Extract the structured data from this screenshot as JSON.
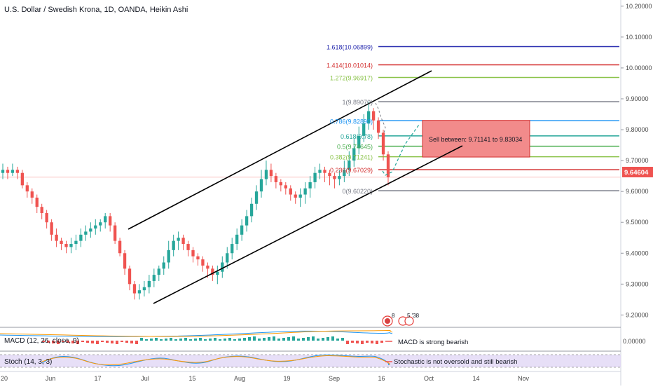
{
  "title": "U.S. Dollar / Swedish Krona, 1D, OANDA, Heikin Ashi",
  "colors": {
    "up": "#26a69a",
    "down": "#ef5350",
    "channel": "#000000",
    "current_price_bg": "#ef5350"
  },
  "chart_data": {
    "type": "candlestick",
    "price_axis": {
      "ticks": [
        "10.20000",
        "10.10000",
        "10.00000",
        "9.90000",
        "9.80000",
        "9.70000",
        "9.60000",
        "9.50000",
        "9.40000",
        "9.30000",
        "9.20000"
      ],
      "ylim": [
        9.16,
        10.22
      ]
    },
    "time_axis": {
      "labels": [
        "20",
        "Jun",
        "17",
        "Jul",
        "15",
        "Aug",
        "19",
        "Sep",
        "16",
        "Oct",
        "14",
        "Nov"
      ]
    },
    "current_price": "9.64604",
    "fib_levels": [
      {
        "label": "1.618(10.06899)",
        "value": 10.06899,
        "color": "#2a2eb0"
      },
      {
        "label": "1.414(10.01014)",
        "value": 10.01014,
        "color": "#d32f2f"
      },
      {
        "label": "1.272(9.96917)",
        "value": 9.96917,
        "color": "#8bc34a"
      },
      {
        "label": "1(9.89070)",
        "value": 9.8907,
        "color": "#787b86"
      },
      {
        "label": "0.786(9.82890)",
        "value": 9.8289,
        "color": "#2196f3"
      },
      {
        "label": "0.618(9.78)",
        "value": 9.78,
        "color": "#26a69a"
      },
      {
        "label": "0.5(9.74645)",
        "value": 9.74645,
        "color": "#4caf50"
      },
      {
        "label": "0.382(9.71241)",
        "value": 9.71241,
        "color": "#8bc34a"
      },
      {
        "label": "0.236(9.67029)",
        "value": 9.67029,
        "color": "#d32f2f"
      },
      {
        "label": "0(9.60220)",
        "value": 9.6022,
        "color": "#787b86"
      }
    ],
    "sell_zone": {
      "label": "Sell between: 9.71141 to 9.83034",
      "low": 9.71141,
      "high": 9.83034
    },
    "channel_upper": [
      {
        "x": "2020-05-29",
        "y": 9.46
      },
      {
        "x": "2020-09-04",
        "y": 9.99
      }
    ],
    "channel_lower": [
      {
        "x": "2020-06-30",
        "y": 9.2
      },
      {
        "x": "2020-09-10",
        "y": 9.73
      }
    ],
    "candles": [
      {
        "o": 9.66,
        "c": 9.67,
        "h": 9.69,
        "l": 9.64
      },
      {
        "o": 9.67,
        "c": 9.66,
        "h": 9.68,
        "l": 9.64
      },
      {
        "o": 9.66,
        "c": 9.67,
        "h": 9.69,
        "l": 9.65
      },
      {
        "o": 9.67,
        "c": 9.66,
        "h": 9.68,
        "l": 9.64
      },
      {
        "o": 9.66,
        "c": 9.62,
        "h": 9.67,
        "l": 9.61
      },
      {
        "o": 9.62,
        "c": 9.6,
        "h": 9.63,
        "l": 9.58
      },
      {
        "o": 9.6,
        "c": 9.58,
        "h": 9.61,
        "l": 9.56
      },
      {
        "o": 9.58,
        "c": 9.55,
        "h": 9.59,
        "l": 9.53
      },
      {
        "o": 9.55,
        "c": 9.53,
        "h": 9.56,
        "l": 9.51
      },
      {
        "o": 9.53,
        "c": 9.5,
        "h": 9.54,
        "l": 9.48
      },
      {
        "o": 9.5,
        "c": 9.46,
        "h": 9.51,
        "l": 9.44
      },
      {
        "o": 9.46,
        "c": 9.44,
        "h": 9.48,
        "l": 9.42
      },
      {
        "o": 9.44,
        "c": 9.43,
        "h": 9.45,
        "l": 9.41
      },
      {
        "o": 9.43,
        "c": 9.42,
        "h": 9.44,
        "l": 9.4
      },
      {
        "o": 9.42,
        "c": 9.43,
        "h": 9.45,
        "l": 9.4
      },
      {
        "o": 9.43,
        "c": 9.44,
        "h": 9.46,
        "l": 9.41
      },
      {
        "o": 9.44,
        "c": 9.46,
        "h": 9.48,
        "l": 9.42
      },
      {
        "o": 9.46,
        "c": 9.47,
        "h": 9.49,
        "l": 9.44
      },
      {
        "o": 9.47,
        "c": 9.48,
        "h": 9.5,
        "l": 9.45
      },
      {
        "o": 9.48,
        "c": 9.49,
        "h": 9.51,
        "l": 9.46
      },
      {
        "o": 9.49,
        "c": 9.5,
        "h": 9.51,
        "l": 9.47
      },
      {
        "o": 9.5,
        "c": 9.52,
        "h": 9.53,
        "l": 9.48
      },
      {
        "o": 9.52,
        "c": 9.49,
        "h": 9.53,
        "l": 9.47
      },
      {
        "o": 9.49,
        "c": 9.44,
        "h": 9.5,
        "l": 9.43
      },
      {
        "o": 9.44,
        "c": 9.4,
        "h": 9.45,
        "l": 9.39
      },
      {
        "o": 9.4,
        "c": 9.35,
        "h": 9.41,
        "l": 9.33
      },
      {
        "o": 9.35,
        "c": 9.3,
        "h": 9.36,
        "l": 9.28
      },
      {
        "o": 9.3,
        "c": 9.27,
        "h": 9.31,
        "l": 9.25
      },
      {
        "o": 9.27,
        "c": 9.28,
        "h": 9.3,
        "l": 9.25
      },
      {
        "o": 9.28,
        "c": 9.29,
        "h": 9.31,
        "l": 9.26
      },
      {
        "o": 9.29,
        "c": 9.31,
        "h": 9.33,
        "l": 9.27
      },
      {
        "o": 9.31,
        "c": 9.33,
        "h": 9.35,
        "l": 9.29
      },
      {
        "o": 9.33,
        "c": 9.35,
        "h": 9.36,
        "l": 9.31
      },
      {
        "o": 9.35,
        "c": 9.37,
        "h": 9.39,
        "l": 9.33
      },
      {
        "o": 9.37,
        "c": 9.41,
        "h": 9.44,
        "l": 9.35
      },
      {
        "o": 9.41,
        "c": 9.44,
        "h": 9.46,
        "l": 9.39
      },
      {
        "o": 9.44,
        "c": 9.45,
        "h": 9.47,
        "l": 9.41
      },
      {
        "o": 9.45,
        "c": 9.43,
        "h": 9.46,
        "l": 9.41
      },
      {
        "o": 9.43,
        "c": 9.41,
        "h": 9.44,
        "l": 9.39
      },
      {
        "o": 9.41,
        "c": 9.39,
        "h": 9.42,
        "l": 9.37
      },
      {
        "o": 9.39,
        "c": 9.38,
        "h": 9.4,
        "l": 9.36
      },
      {
        "o": 9.38,
        "c": 9.36,
        "h": 9.39,
        "l": 9.34
      },
      {
        "o": 9.36,
        "c": 9.35,
        "h": 9.37,
        "l": 9.32
      },
      {
        "o": 9.35,
        "c": 9.33,
        "h": 9.36,
        "l": 9.31
      },
      {
        "o": 9.33,
        "c": 9.34,
        "h": 9.36,
        "l": 9.3
      },
      {
        "o": 9.34,
        "c": 9.37,
        "h": 9.39,
        "l": 9.32
      },
      {
        "o": 9.37,
        "c": 9.4,
        "h": 9.42,
        "l": 9.35
      },
      {
        "o": 9.4,
        "c": 9.43,
        "h": 9.45,
        "l": 9.38
      },
      {
        "o": 9.43,
        "c": 9.46,
        "h": 9.48,
        "l": 9.41
      },
      {
        "o": 9.46,
        "c": 9.49,
        "h": 9.51,
        "l": 9.44
      },
      {
        "o": 9.49,
        "c": 9.52,
        "h": 9.54,
        "l": 9.47
      },
      {
        "o": 9.52,
        "c": 9.56,
        "h": 9.58,
        "l": 9.5
      },
      {
        "o": 9.56,
        "c": 9.6,
        "h": 9.62,
        "l": 9.54
      },
      {
        "o": 9.6,
        "c": 9.64,
        "h": 9.67,
        "l": 9.58
      },
      {
        "o": 9.64,
        "c": 9.67,
        "h": 9.7,
        "l": 9.62
      },
      {
        "o": 9.67,
        "c": 9.65,
        "h": 9.69,
        "l": 9.63
      },
      {
        "o": 9.65,
        "c": 9.63,
        "h": 9.66,
        "l": 9.61
      },
      {
        "o": 9.63,
        "c": 9.62,
        "h": 9.64,
        "l": 9.6
      },
      {
        "o": 9.62,
        "c": 9.61,
        "h": 9.63,
        "l": 9.59
      },
      {
        "o": 9.61,
        "c": 9.59,
        "h": 9.62,
        "l": 9.57
      },
      {
        "o": 9.59,
        "c": 9.58,
        "h": 9.6,
        "l": 9.56
      },
      {
        "o": 9.58,
        "c": 9.59,
        "h": 9.61,
        "l": 9.55
      },
      {
        "o": 9.59,
        "c": 9.61,
        "h": 9.63,
        "l": 9.56
      },
      {
        "o": 9.61,
        "c": 9.63,
        "h": 9.65,
        "l": 9.58
      },
      {
        "o": 9.63,
        "c": 9.66,
        "h": 9.68,
        "l": 9.61
      },
      {
        "o": 9.66,
        "c": 9.67,
        "h": 9.69,
        "l": 9.64
      },
      {
        "o": 9.67,
        "c": 9.66,
        "h": 9.68,
        "l": 9.63
      },
      {
        "o": 9.66,
        "c": 9.65,
        "h": 9.67,
        "l": 9.62
      },
      {
        "o": 9.65,
        "c": 9.64,
        "h": 9.66,
        "l": 9.61
      },
      {
        "o": 9.64,
        "c": 9.65,
        "h": 9.67,
        "l": 9.62
      },
      {
        "o": 9.65,
        "c": 9.67,
        "h": 9.7,
        "l": 9.63
      },
      {
        "o": 9.67,
        "c": 9.7,
        "h": 9.73,
        "l": 9.65
      },
      {
        "o": 9.7,
        "c": 9.74,
        "h": 9.77,
        "l": 9.68
      },
      {
        "o": 9.74,
        "c": 9.78,
        "h": 9.81,
        "l": 9.72
      },
      {
        "o": 9.78,
        "c": 9.82,
        "h": 9.85,
        "l": 9.76
      },
      {
        "o": 9.82,
        "c": 9.86,
        "h": 9.89,
        "l": 9.8
      },
      {
        "o": 9.86,
        "c": 9.83,
        "h": 9.87,
        "l": 9.8
      },
      {
        "o": 9.83,
        "c": 9.79,
        "h": 9.84,
        "l": 9.77
      },
      {
        "o": 9.79,
        "c": 9.72,
        "h": 9.8,
        "l": 9.7
      },
      {
        "o": 9.72,
        "c": 9.646,
        "h": 9.73,
        "l": 9.62
      }
    ]
  },
  "event_badge": {
    "count": "8",
    "time": "5 '38"
  },
  "macd": {
    "title": "MACD (12, 26, close, 9)",
    "note": "MACD is strong bearish",
    "axis_label": "0.00000"
  },
  "stoch": {
    "title": "Stoch (14, 3, 3)",
    "note": "Stochastic is not oversold and still bearish"
  }
}
